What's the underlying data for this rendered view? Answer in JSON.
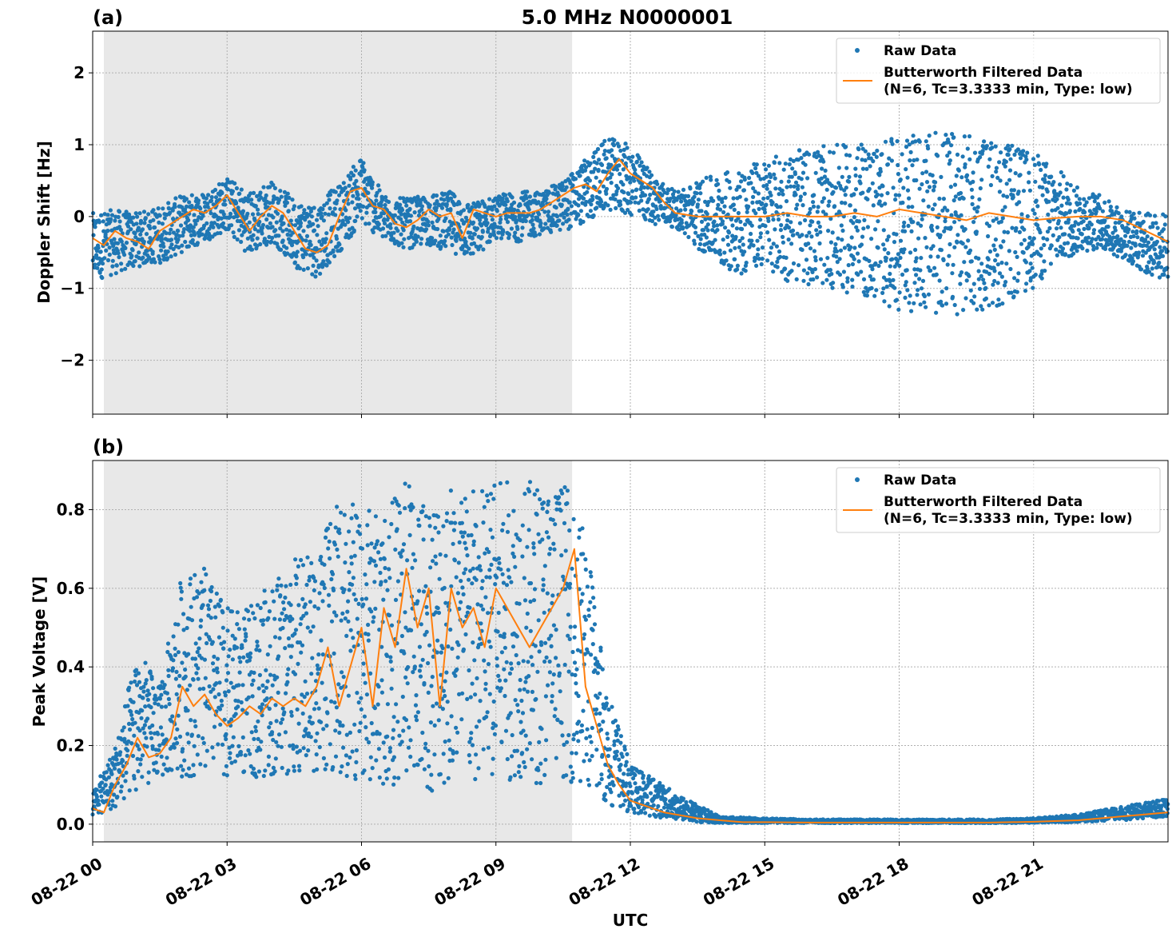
{
  "figure": {
    "title": "5.0 MHz N0000001",
    "xlabel": "UTC",
    "colors": {
      "raw": "#1f77b4",
      "filtered": "#ff7f0e",
      "shade": "#e8e8e8",
      "grid": "#b0b0b0"
    },
    "xticks": [
      "08-22 00",
      "08-22 03",
      "08-22 06",
      "08-22 09",
      "08-22 12",
      "08-22 15",
      "08-22 18",
      "08-22 21"
    ],
    "legend": {
      "raw": "Raw Data",
      "filtered_line1": "Butterworth Filtered Data",
      "filtered_line2": "(N=6, Tc=3.3333 min, Type: low)",
      "position": "top-right"
    }
  },
  "chart_data": [
    {
      "type": "scatter",
      "panel_label": "(a)",
      "ylabel": "Doppler Shift [Hz]",
      "xlabel": "",
      "xlim_hours": [
        0,
        24
      ],
      "ylim": [
        -2.75,
        2.58
      ],
      "yticks": [
        2,
        1,
        0,
        -1,
        -2
      ],
      "ytick_labels": [
        "2",
        "1",
        "0",
        "−1",
        "−2"
      ],
      "shaded_interval_hours": [
        0.25,
        10.7
      ],
      "grid": true,
      "series": [
        {
          "name": "Butterworth Filtered Data",
          "x_hours": [
            0,
            0.25,
            0.5,
            0.75,
            1,
            1.25,
            1.5,
            1.75,
            2,
            2.25,
            2.5,
            2.75,
            3,
            3.25,
            3.5,
            3.75,
            4,
            4.25,
            4.5,
            4.75,
            5,
            5.25,
            5.5,
            5.75,
            6,
            6.25,
            6.5,
            6.75,
            7,
            7.25,
            7.5,
            7.75,
            8,
            8.25,
            8.5,
            8.75,
            9,
            9.25,
            9.5,
            9.75,
            10,
            10.25,
            10.5,
            10.75,
            11,
            11.25,
            11.5,
            11.75,
            12,
            12.25,
            12.5,
            12.75,
            13,
            13.5,
            14,
            14.5,
            15,
            15.5,
            16,
            16.5,
            17,
            17.5,
            18,
            18.5,
            19,
            19.5,
            20,
            20.5,
            21,
            21.5,
            22,
            22.5,
            23,
            23.5,
            24
          ],
          "values": [
            -0.3,
            -0.4,
            -0.2,
            -0.3,
            -0.35,
            -0.45,
            -0.2,
            -0.1,
            0.0,
            0.1,
            0.05,
            0.15,
            0.3,
            0.05,
            -0.2,
            0.0,
            0.15,
            0.05,
            -0.2,
            -0.45,
            -0.5,
            -0.4,
            0.0,
            0.35,
            0.4,
            0.15,
            0.1,
            -0.1,
            -0.15,
            -0.05,
            0.1,
            0.0,
            0.05,
            -0.3,
            0.1,
            0.05,
            0.0,
            0.05,
            0.05,
            0.05,
            0.1,
            0.2,
            0.3,
            0.4,
            0.45,
            0.35,
            0.6,
            0.8,
            0.6,
            0.5,
            0.4,
            0.2,
            0.05,
            0.0,
            0.0,
            0.0,
            0.0,
            0.05,
            0.0,
            0.0,
            0.05,
            0.0,
            0.1,
            0.05,
            0.0,
            -0.05,
            0.05,
            0.0,
            -0.05,
            -0.02,
            0.0,
            0.0,
            -0.05,
            -0.2,
            -0.35
          ]
        },
        {
          "name": "Raw Data",
          "x_hours": [
            0,
            0.5,
            1,
            1.5,
            2,
            2.5,
            3,
            3.5,
            4,
            4.5,
            5,
            5.5,
            6,
            6.5,
            7,
            7.5,
            8,
            8.5,
            9,
            9.5,
            10,
            10.5,
            11,
            11.5,
            12,
            12.5,
            13,
            13.5,
            14,
            14.5,
            15,
            15.5,
            16,
            16.5,
            17,
            17.5,
            18,
            18.5,
            19,
            19.5,
            20,
            20.5,
            21,
            21.5,
            22,
            22.5,
            23,
            23.5,
            24
          ],
          "low": [
            -0.9,
            -0.8,
            -0.7,
            -0.65,
            -0.5,
            -0.35,
            -0.2,
            -0.55,
            -0.35,
            -0.7,
            -0.85,
            -0.5,
            -0.1,
            -0.35,
            -0.45,
            -0.4,
            -0.5,
            -0.6,
            -0.3,
            -0.35,
            -0.25,
            -0.2,
            -0.1,
            0.1,
            0.0,
            -0.1,
            -0.15,
            -0.45,
            -0.7,
            -0.8,
            -0.7,
            -0.9,
            -0.95,
            -1.0,
            -1.1,
            -1.2,
            -1.3,
            -1.35,
            -1.4,
            -1.35,
            -1.3,
            -1.2,
            -1.0,
            -0.7,
            -0.5,
            -0.45,
            -0.6,
            -0.8,
            -0.9
          ],
          "high": [
            0.05,
            0.1,
            0.05,
            0.15,
            0.3,
            0.35,
            0.55,
            0.35,
            0.5,
            0.25,
            0.2,
            0.45,
            0.85,
            0.3,
            0.25,
            0.3,
            0.35,
            0.2,
            0.3,
            0.35,
            0.35,
            0.5,
            0.8,
            1.1,
            1.0,
            0.6,
            0.35,
            0.5,
            0.6,
            0.7,
            0.8,
            0.9,
            0.95,
            1.0,
            1.0,
            1.05,
            1.1,
            1.15,
            1.2,
            1.15,
            1.1,
            1.0,
            0.9,
            0.7,
            0.4,
            0.3,
            0.1,
            0.05,
            0.05
          ]
        }
      ]
    },
    {
      "type": "scatter",
      "panel_label": "(b)",
      "ylabel": "Peak Voltage [V]",
      "xlabel": "UTC",
      "xlim_hours": [
        0,
        24
      ],
      "ylim": [
        -0.045,
        0.925
      ],
      "yticks": [
        0.8,
        0.6,
        0.4,
        0.2,
        0.0
      ],
      "ytick_labels": [
        "0.8",
        "0.6",
        "0.4",
        "0.2",
        "0.0"
      ],
      "shaded_interval_hours": [
        0.25,
        10.7
      ],
      "grid": true,
      "series": [
        {
          "name": "Butterworth Filtered Data",
          "x_hours": [
            0,
            0.25,
            0.5,
            0.75,
            1,
            1.25,
            1.5,
            1.75,
            2,
            2.25,
            2.5,
            2.75,
            3,
            3.25,
            3.5,
            3.75,
            4,
            4.25,
            4.5,
            4.75,
            5,
            5.25,
            5.5,
            5.75,
            6,
            6.25,
            6.5,
            6.75,
            7,
            7.25,
            7.5,
            7.75,
            8,
            8.25,
            8.5,
            8.75,
            9,
            9.25,
            9.5,
            9.75,
            10,
            10.25,
            10.5,
            10.75,
            11,
            11.25,
            11.5,
            11.75,
            12,
            12.25,
            12.5,
            12.75,
            13,
            13.5,
            14,
            14.5,
            15,
            16,
            17,
            18,
            19,
            20,
            21,
            22,
            22.5,
            23,
            23.5,
            24
          ],
          "values": [
            0.04,
            0.03,
            0.1,
            0.15,
            0.22,
            0.17,
            0.18,
            0.22,
            0.35,
            0.3,
            0.33,
            0.28,
            0.25,
            0.27,
            0.3,
            0.28,
            0.32,
            0.3,
            0.32,
            0.3,
            0.35,
            0.45,
            0.3,
            0.4,
            0.5,
            0.3,
            0.55,
            0.45,
            0.65,
            0.5,
            0.6,
            0.3,
            0.6,
            0.5,
            0.55,
            0.45,
            0.6,
            0.55,
            0.5,
            0.45,
            0.5,
            0.55,
            0.6,
            0.7,
            0.35,
            0.25,
            0.15,
            0.1,
            0.06,
            0.05,
            0.04,
            0.03,
            0.025,
            0.015,
            0.01,
            0.005,
            0.005,
            0.004,
            0.004,
            0.004,
            0.004,
            0.004,
            0.006,
            0.01,
            0.015,
            0.02,
            0.025,
            0.03
          ]
        },
        {
          "name": "Raw Data",
          "x_hours": [
            0,
            0.5,
            1,
            1.5,
            2,
            2.5,
            3,
            3.5,
            4,
            4.5,
            5,
            5.5,
            6,
            6.5,
            7,
            7.5,
            8,
            8.5,
            9,
            9.5,
            10,
            10.5,
            11,
            11.5,
            12,
            12.5,
            13,
            13.5,
            14,
            15,
            16,
            17,
            18,
            19,
            20,
            21,
            22,
            22.5,
            23,
            23.5,
            24
          ],
          "low": [
            0.02,
            0.04,
            0.08,
            0.12,
            0.12,
            0.12,
            0.12,
            0.12,
            0.12,
            0.12,
            0.13,
            0.12,
            0.1,
            0.1,
            0.1,
            0.08,
            0.1,
            0.08,
            0.1,
            0.12,
            0.1,
            0.12,
            0.08,
            0.05,
            0.03,
            0.02,
            0.01,
            0.005,
            0.003,
            0.003,
            0.003,
            0.003,
            0.003,
            0.003,
            0.003,
            0.003,
            0.005,
            0.008,
            0.01,
            0.015,
            0.02
          ],
          "high": [
            0.08,
            0.2,
            0.45,
            0.35,
            0.65,
            0.65,
            0.55,
            0.55,
            0.62,
            0.68,
            0.7,
            0.82,
            0.82,
            0.8,
            0.88,
            0.85,
            0.88,
            0.86,
            0.88,
            0.87,
            0.88,
            0.88,
            0.75,
            0.35,
            0.15,
            0.12,
            0.08,
            0.05,
            0.02,
            0.015,
            0.012,
            0.012,
            0.012,
            0.012,
            0.012,
            0.015,
            0.025,
            0.035,
            0.045,
            0.055,
            0.065
          ]
        }
      ]
    }
  ]
}
